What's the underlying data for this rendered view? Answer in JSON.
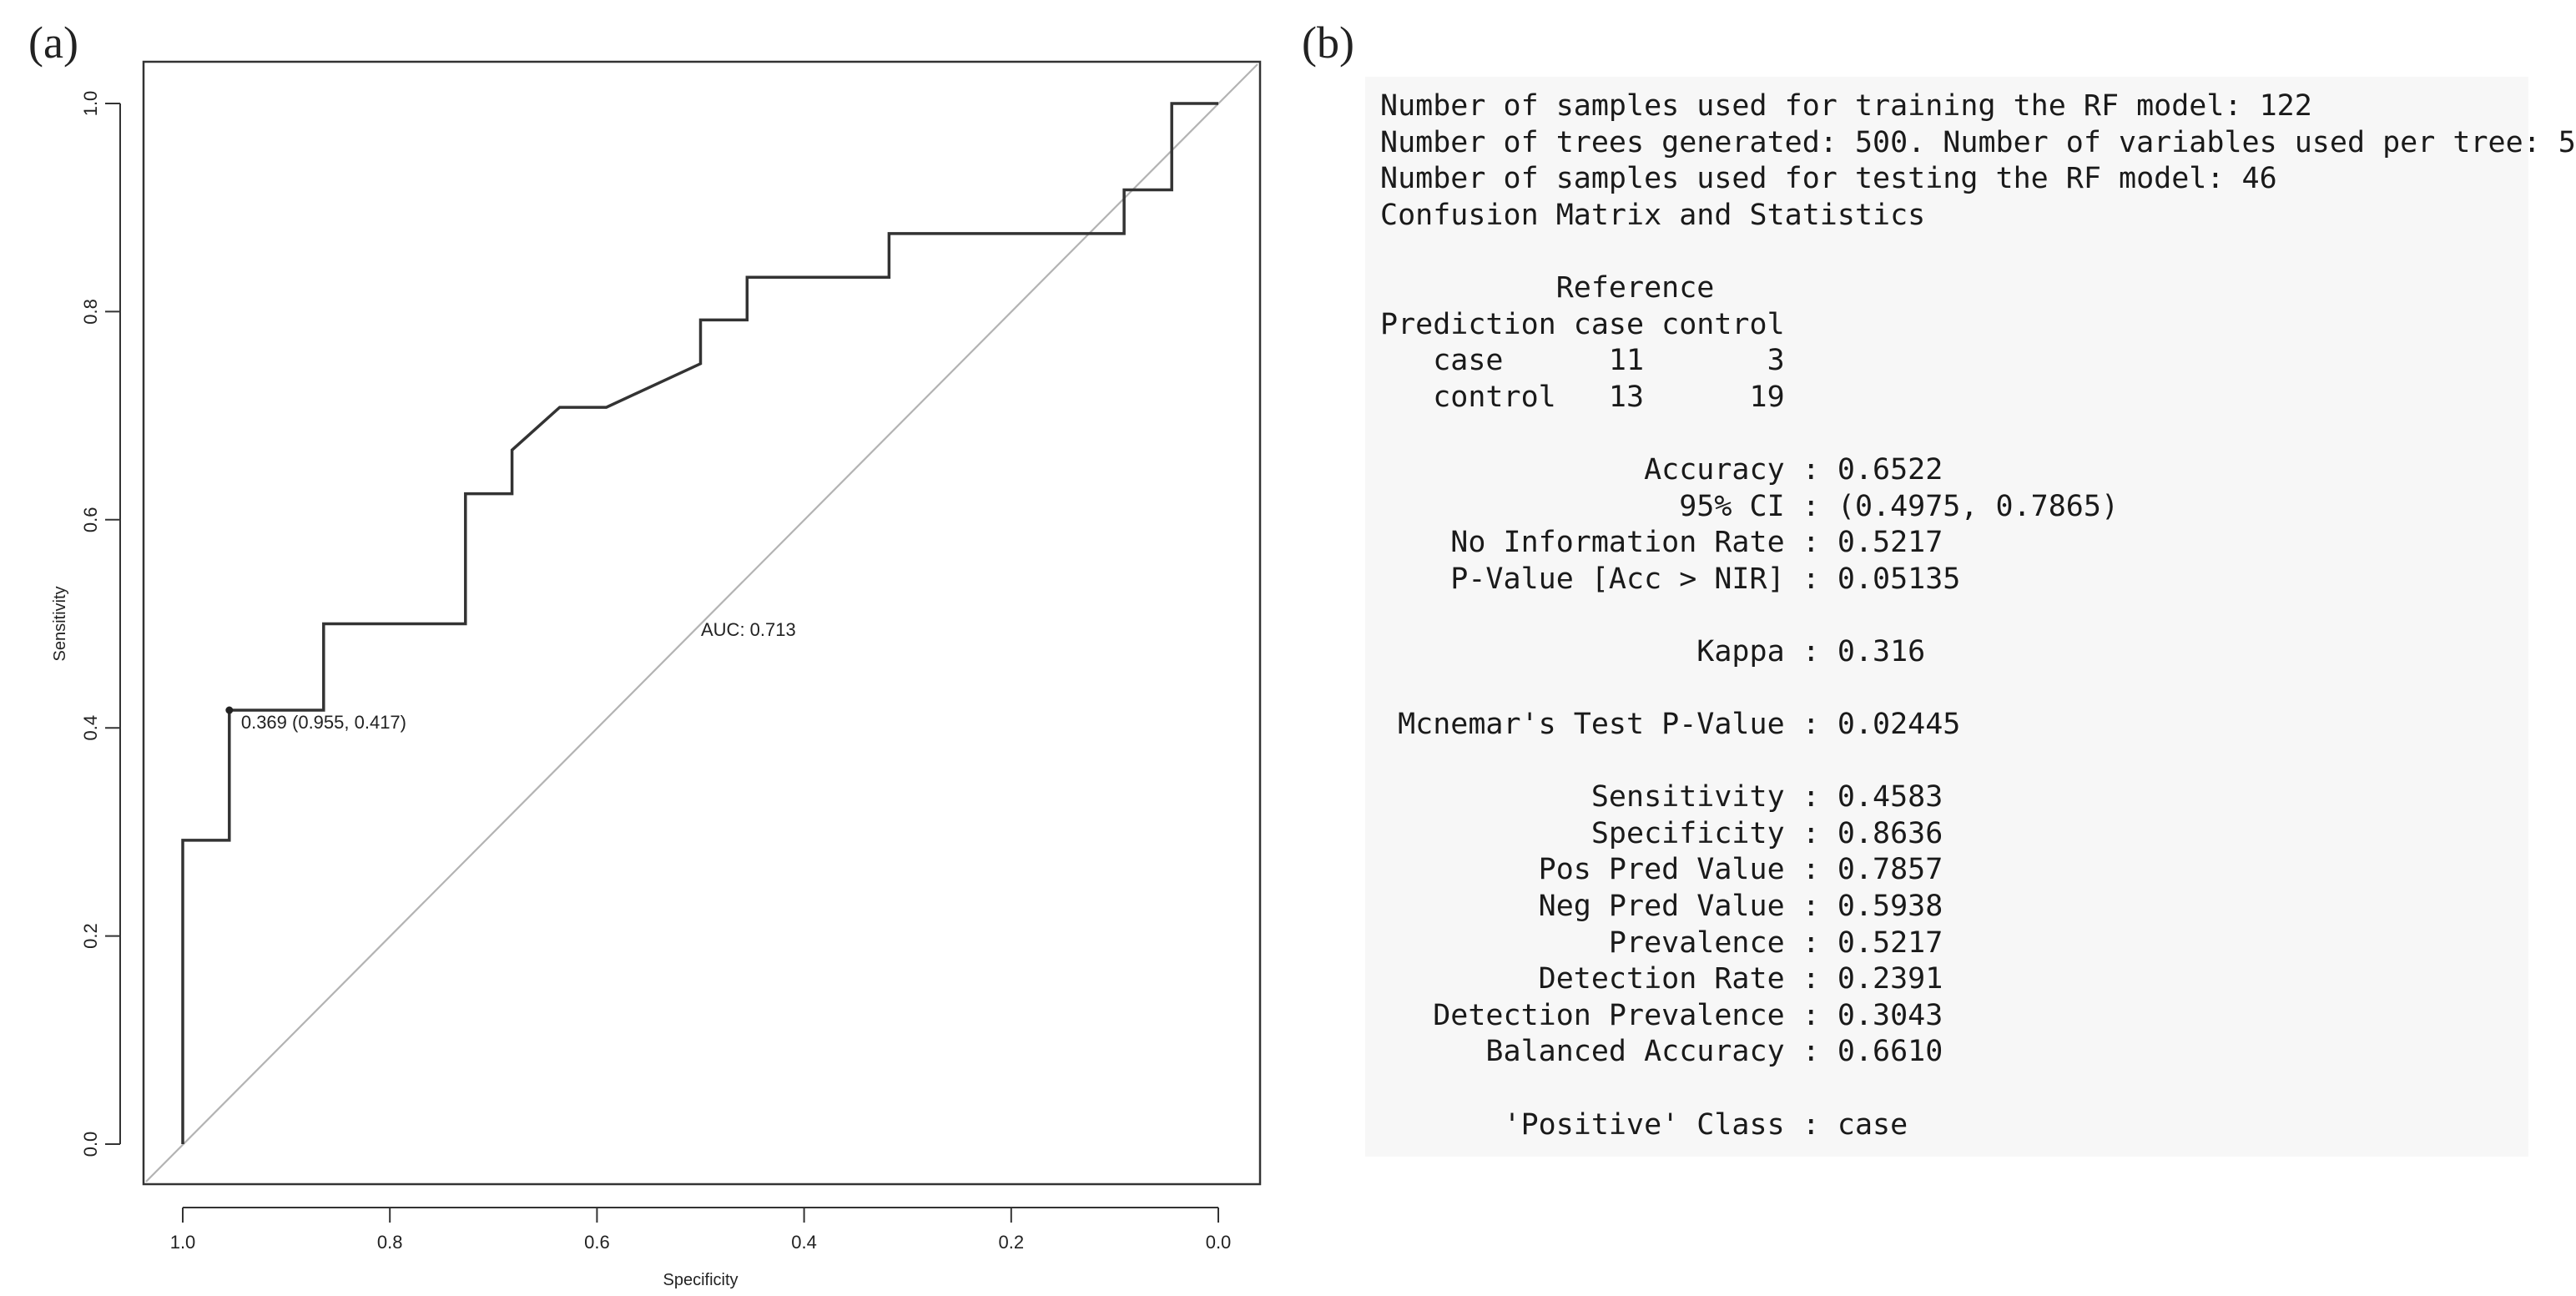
{
  "panel_a": {
    "label": "(a)"
  },
  "panel_b": {
    "label": "(b)"
  },
  "chart_data": {
    "type": "line",
    "title": "",
    "xlabel": "Specificity",
    "ylabel": "Sensitivity",
    "xlim": [
      1.0,
      0.0
    ],
    "ylim": [
      0.0,
      1.0
    ],
    "x_reversed": true,
    "x_ticks": [
      "1.0",
      "0.8",
      "0.6",
      "0.4",
      "0.2",
      "0.0"
    ],
    "y_ticks": [
      "0.0",
      "0.2",
      "0.4",
      "0.6",
      "0.8",
      "1.0"
    ],
    "grid": false,
    "series": [
      {
        "points": [
          [
            1.0,
            0.0
          ],
          [
            1.0,
            0.292
          ],
          [
            0.955,
            0.292
          ],
          [
            0.955,
            0.417
          ],
          [
            0.864,
            0.417
          ],
          [
            0.864,
            0.5
          ],
          [
            0.727,
            0.5
          ],
          [
            0.727,
            0.625
          ],
          [
            0.682,
            0.625
          ],
          [
            0.682,
            0.667
          ],
          [
            0.636,
            0.708
          ],
          [
            0.591,
            0.708
          ],
          [
            0.5,
            0.75
          ],
          [
            0.5,
            0.792
          ],
          [
            0.455,
            0.792
          ],
          [
            0.455,
            0.833
          ],
          [
            0.318,
            0.833
          ],
          [
            0.318,
            0.875
          ],
          [
            0.091,
            0.875
          ],
          [
            0.091,
            0.917
          ],
          [
            0.045,
            0.917
          ],
          [
            0.045,
            1.0
          ],
          [
            0.0,
            1.0
          ]
        ],
        "color": "#333333"
      }
    ],
    "reference_line": {
      "from": [
        1.0,
        0.0
      ],
      "to": [
        0.0,
        1.0
      ],
      "color": "#b3b3b3"
    },
    "threshold_point": {
      "x": 0.955,
      "y": 0.417,
      "label": "0.369 (0.955, 0.417)"
    },
    "annotations": [
      {
        "text": "AUC: 0.713"
      }
    ]
  },
  "console": {
    "lines": [
      "Number of samples used for training the RF model: 122",
      "Number of trees generated: 500. Number of variables used per tree: 5",
      "Number of samples used for testing the RF model: 46",
      "Confusion Matrix and Statistics",
      "",
      "          Reference",
      "Prediction case control",
      "   case      11       3",
      "   control   13      19",
      "",
      "               Accuracy : 0.6522",
      "                 95% CI : (0.4975, 0.7865)",
      "    No Information Rate : 0.5217",
      "    P-Value [Acc > NIR] : 0.05135",
      "",
      "                  Kappa : 0.316",
      "",
      " Mcnemar's Test P-Value : 0.02445",
      "",
      "            Sensitivity : 0.4583",
      "            Specificity : 0.8636",
      "         Pos Pred Value : 0.7857",
      "         Neg Pred Value : 0.5938",
      "             Prevalence : 0.5217",
      "         Detection Rate : 0.2391",
      "   Detection Prevalence : 0.3043",
      "      Balanced Accuracy : 0.6610",
      "",
      "       'Positive' Class : case"
    ]
  }
}
